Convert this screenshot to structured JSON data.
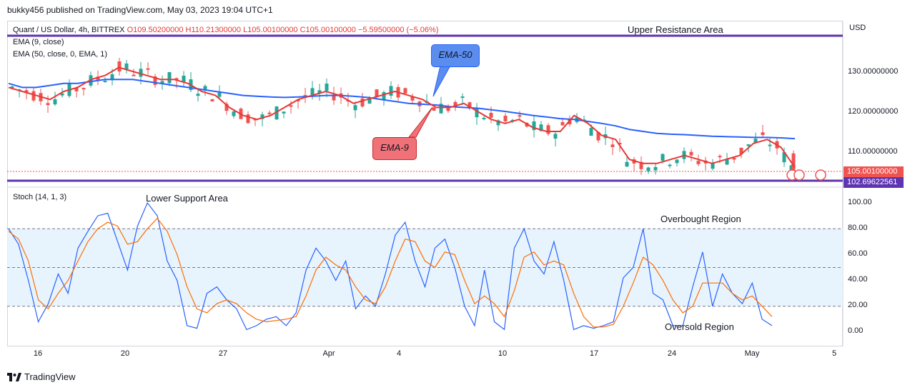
{
  "header": {
    "publisher": "bukky456 published on TradingView.com, May 03, 2023 19:04 UTC+1"
  },
  "legend": {
    "symbol": "Quant / US Dollar, 4h, BITTREX",
    "ohlc": "O109.50200000  H110.21300000  L105.00100000  C105.00100000  −5.59500000 (−5.06%)",
    "ema9": "EMA (9, close)",
    "ema50": "EMA (50, close, 0, EMA, 1)",
    "stoch": "Stoch (14, 1, 3)"
  },
  "annotations": {
    "upper": "Upper Resistance Area",
    "lower": "Lower Support Area",
    "overbought": "Overbought Region",
    "oversold": "Oversold Region",
    "ema50_tag": "EMA-50",
    "ema9_tag": "EMA-9"
  },
  "price_axis": {
    "currency": "USD",
    "ticks": [
      "130.00000000",
      "120.00000000",
      "110.00000000"
    ],
    "last_price": "105.00100000",
    "support_price": "102.69622561"
  },
  "stoch_axis": {
    "ticks": [
      "100.00",
      "80.00",
      "60.00",
      "40.00",
      "20.00",
      "0.00"
    ]
  },
  "time_axis": {
    "ticks": [
      "16",
      "20",
      "27",
      "Apr",
      "4",
      "10",
      "17",
      "24",
      "May",
      "5"
    ]
  },
  "footer": {
    "brand": "TradingView"
  },
  "colors": {
    "bull": "#26a69a",
    "bear": "#ef5350",
    "ema9": "#e53935",
    "ema50": "#2962ff",
    "level": "#5e35b1",
    "bubble_blue": "#5b8def",
    "bubble_red": "#f07178"
  },
  "chart_data": [
    {
      "type": "candlestick",
      "title": "Quant / US Dollar, 4h, BITTREX",
      "ylim": [
        102,
        141
      ],
      "levels": {
        "upper_resistance": 141,
        "lower_support": 102.69622561,
        "last": 105.001
      },
      "ohlc_last": {
        "open": 109.502,
        "high": 110.213,
        "low": 105.001,
        "close": 105.001
      },
      "ema9": [
        126,
        125,
        124,
        123,
        125,
        126,
        128,
        129,
        131,
        130,
        129,
        128,
        128,
        127,
        125,
        124,
        121,
        119,
        118,
        119,
        121,
        123,
        124,
        125,
        124,
        122,
        123,
        124,
        125,
        124,
        123,
        121,
        121,
        122,
        120,
        118,
        117,
        118,
        116,
        115,
        115,
        119,
        117,
        114,
        113,
        108,
        107,
        107,
        108,
        109,
        108,
        107,
        108,
        109,
        112,
        113,
        111,
        106
      ],
      "ema50": [
        127,
        126,
        126,
        126.5,
        127,
        127,
        127.5,
        128,
        128,
        128,
        127.5,
        127,
        126.5,
        126,
        125.5,
        125,
        124.5,
        124,
        123.8,
        123.6,
        123.5,
        123.6,
        123.8,
        124,
        124,
        123.8,
        123.5,
        123,
        122.5,
        122,
        121.8,
        121.6,
        121.2,
        121,
        120.8,
        120.4,
        120,
        119.5,
        119,
        118.6,
        118.2,
        118,
        117.5,
        117,
        116.4,
        115.5,
        115,
        114.5,
        114.3,
        114.2,
        114,
        113.8,
        113.7,
        113.6,
        113.5,
        113.5,
        113.4,
        113.2
      ]
    },
    {
      "type": "line",
      "title": "Stoch (14, 1, 3)",
      "ylim": [
        0,
        100
      ],
      "bands": {
        "overbought": 80,
        "mid": 50,
        "oversold": 20
      },
      "series": [
        {
          "name": "%K",
          "values": [
            80,
            68,
            40,
            8,
            22,
            45,
            30,
            65,
            78,
            90,
            92,
            70,
            48,
            82,
            100,
            90,
            55,
            40,
            5,
            3,
            30,
            35,
            25,
            18,
            2,
            5,
            10,
            12,
            5,
            15,
            48,
            65,
            55,
            40,
            55,
            18,
            28,
            20,
            45,
            75,
            85,
            55,
            35,
            65,
            72,
            50,
            20,
            5,
            48,
            8,
            2,
            65,
            80,
            55,
            45,
            70,
            40,
            2,
            5,
            3,
            5,
            8,
            42,
            50,
            80,
            30,
            25,
            5,
            5,
            35,
            62,
            20,
            45,
            30,
            22,
            38,
            10,
            5
          ]
        },
        {
          "name": "%D",
          "values": [
            78,
            72,
            55,
            25,
            18,
            30,
            40,
            55,
            70,
            80,
            85,
            82,
            68,
            70,
            80,
            88,
            78,
            60,
            35,
            18,
            15,
            22,
            25,
            22,
            15,
            10,
            8,
            9,
            10,
            12,
            28,
            48,
            58,
            52,
            48,
            35,
            25,
            22,
            35,
            55,
            72,
            70,
            55,
            50,
            62,
            60,
            40,
            22,
            28,
            22,
            12,
            32,
            58,
            62,
            52,
            55,
            52,
            30,
            12,
            4,
            4,
            6,
            20,
            38,
            58,
            52,
            40,
            25,
            15,
            20,
            38,
            38,
            38,
            30,
            25,
            28,
            20,
            12
          ]
        }
      ]
    }
  ]
}
